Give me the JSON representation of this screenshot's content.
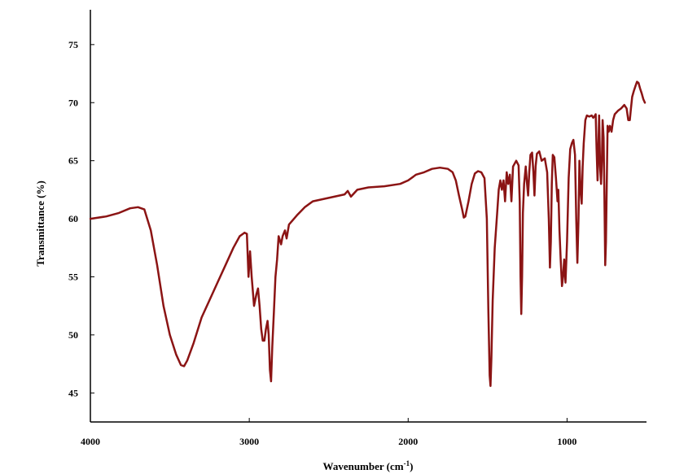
{
  "chart_data": {
    "type": "line",
    "title": "",
    "xlabel": "Wavenumber (cm",
    "xlabel_sup": "-1",
    "xlabel_end": ")",
    "ylabel": "Transmittance (%)",
    "xlim": [
      4000,
      500
    ],
    "ylim": [
      42.5,
      78
    ],
    "x_reversed": true,
    "grid": false,
    "legend": "none",
    "x_ticks": [
      4000,
      3000,
      2000,
      1000
    ],
    "y_ticks": [
      45,
      50,
      55,
      60,
      65,
      70,
      75
    ],
    "series": [
      {
        "color": "#8b1414",
        "points": [
          [
            4000,
            60.0
          ],
          [
            3900,
            60.2
          ],
          [
            3820,
            60.5
          ],
          [
            3750,
            60.9
          ],
          [
            3700,
            61.0
          ],
          [
            3660,
            60.8
          ],
          [
            3620,
            59.0
          ],
          [
            3580,
            56.0
          ],
          [
            3540,
            52.5
          ],
          [
            3500,
            50.0
          ],
          [
            3460,
            48.3
          ],
          [
            3430,
            47.4
          ],
          [
            3410,
            47.3
          ],
          [
            3390,
            47.8
          ],
          [
            3350,
            49.3
          ],
          [
            3300,
            51.5
          ],
          [
            3250,
            53.0
          ],
          [
            3200,
            54.5
          ],
          [
            3150,
            56.0
          ],
          [
            3100,
            57.5
          ],
          [
            3060,
            58.5
          ],
          [
            3030,
            58.8
          ],
          [
            3015,
            58.7
          ],
          [
            3005,
            55.0
          ],
          [
            2995,
            57.2
          ],
          [
            2985,
            55.0
          ],
          [
            2970,
            52.5
          ],
          [
            2955,
            53.5
          ],
          [
            2945,
            54.0
          ],
          [
            2935,
            52.5
          ],
          [
            2925,
            50.5
          ],
          [
            2915,
            49.5
          ],
          [
            2905,
            49.5
          ],
          [
            2895,
            50.5
          ],
          [
            2885,
            51.2
          ],
          [
            2878,
            50.0
          ],
          [
            2870,
            47.0
          ],
          [
            2863,
            46.0
          ],
          [
            2855,
            49.0
          ],
          [
            2845,
            52.0
          ],
          [
            2835,
            55.0
          ],
          [
            2825,
            56.5
          ],
          [
            2815,
            58.5
          ],
          [
            2800,
            57.8
          ],
          [
            2790,
            58.5
          ],
          [
            2775,
            59.0
          ],
          [
            2765,
            58.3
          ],
          [
            2750,
            59.5
          ],
          [
            2700,
            60.3
          ],
          [
            2650,
            61.0
          ],
          [
            2600,
            61.5
          ],
          [
            2500,
            61.8
          ],
          [
            2400,
            62.1
          ],
          [
            2380,
            62.4
          ],
          [
            2360,
            61.9
          ],
          [
            2320,
            62.5
          ],
          [
            2250,
            62.7
          ],
          [
            2150,
            62.8
          ],
          [
            2050,
            63.0
          ],
          [
            2000,
            63.3
          ],
          [
            1950,
            63.8
          ],
          [
            1900,
            64.0
          ],
          [
            1850,
            64.3
          ],
          [
            1800,
            64.4
          ],
          [
            1750,
            64.3
          ],
          [
            1720,
            64.0
          ],
          [
            1700,
            63.3
          ],
          [
            1680,
            62.0
          ],
          [
            1660,
            60.8
          ],
          [
            1650,
            60.1
          ],
          [
            1640,
            60.2
          ],
          [
            1620,
            61.5
          ],
          [
            1600,
            63.0
          ],
          [
            1580,
            63.9
          ],
          [
            1560,
            64.1
          ],
          [
            1540,
            64.0
          ],
          [
            1520,
            63.5
          ],
          [
            1505,
            60.0
          ],
          [
            1495,
            52.0
          ],
          [
            1487,
            46.5
          ],
          [
            1482,
            45.6
          ],
          [
            1476,
            48.0
          ],
          [
            1468,
            53.0
          ],
          [
            1455,
            57.5
          ],
          [
            1440,
            60.5
          ],
          [
            1430,
            62.5
          ],
          [
            1420,
            63.3
          ],
          [
            1410,
            62.5
          ],
          [
            1400,
            63.3
          ],
          [
            1390,
            61.5
          ],
          [
            1380,
            64.0
          ],
          [
            1370,
            63.0
          ],
          [
            1360,
            63.8
          ],
          [
            1350,
            61.5
          ],
          [
            1340,
            64.5
          ],
          [
            1320,
            65.0
          ],
          [
            1305,
            64.6
          ],
          [
            1298,
            61.5
          ],
          [
            1293,
            55.0
          ],
          [
            1288,
            51.8
          ],
          [
            1283,
            55.0
          ],
          [
            1278,
            60.5
          ],
          [
            1270,
            63.0
          ],
          [
            1260,
            64.5
          ],
          [
            1252,
            63.0
          ],
          [
            1245,
            62.0
          ],
          [
            1238,
            64.0
          ],
          [
            1230,
            65.5
          ],
          [
            1220,
            65.7
          ],
          [
            1212,
            64.0
          ],
          [
            1205,
            62.0
          ],
          [
            1198,
            64.5
          ],
          [
            1190,
            65.6
          ],
          [
            1175,
            65.8
          ],
          [
            1160,
            65.0
          ],
          [
            1140,
            65.2
          ],
          [
            1125,
            64.0
          ],
          [
            1115,
            60.0
          ],
          [
            1108,
            55.8
          ],
          [
            1102,
            58.0
          ],
          [
            1096,
            63.0
          ],
          [
            1090,
            65.5
          ],
          [
            1080,
            65.3
          ],
          [
            1070,
            63.5
          ],
          [
            1060,
            61.5
          ],
          [
            1055,
            62.5
          ],
          [
            1048,
            59.0
          ],
          [
            1040,
            56.5
          ],
          [
            1032,
            54.2
          ],
          [
            1025,
            55.0
          ],
          [
            1018,
            56.5
          ],
          [
            1010,
            54.5
          ],
          [
            1000,
            58.0
          ],
          [
            990,
            63.5
          ],
          [
            980,
            66.0
          ],
          [
            970,
            66.5
          ],
          [
            960,
            66.8
          ],
          [
            950,
            65.5
          ],
          [
            942,
            60.0
          ],
          [
            935,
            56.2
          ],
          [
            928,
            60.0
          ],
          [
            922,
            65.0
          ],
          [
            915,
            62.5
          ],
          [
            908,
            61.3
          ],
          [
            902,
            64.5
          ],
          [
            895,
            66.5
          ],
          [
            885,
            68.5
          ],
          [
            875,
            68.9
          ],
          [
            860,
            68.8
          ],
          [
            845,
            68.9
          ],
          [
            835,
            68.7
          ],
          [
            828,
            68.8
          ],
          [
            820,
            69.0
          ],
          [
            814,
            66.0
          ],
          [
            808,
            63.3
          ],
          [
            803,
            66.0
          ],
          [
            798,
            68.9
          ],
          [
            792,
            64.5
          ],
          [
            786,
            63.0
          ],
          [
            781,
            65.0
          ],
          [
            776,
            68.5
          ],
          [
            770,
            67.0
          ],
          [
            765,
            62.0
          ],
          [
            760,
            56.0
          ],
          [
            755,
            58.0
          ],
          [
            750,
            63.0
          ],
          [
            745,
            68.0
          ],
          [
            738,
            67.5
          ],
          [
            730,
            68.0
          ],
          [
            720,
            67.5
          ],
          [
            710,
            68.5
          ],
          [
            700,
            69.0
          ],
          [
            680,
            69.3
          ],
          [
            660,
            69.5
          ],
          [
            640,
            69.8
          ],
          [
            625,
            69.5
          ],
          [
            615,
            68.5
          ],
          [
            605,
            68.5
          ],
          [
            598,
            69.5
          ],
          [
            590,
            70.5
          ],
          [
            580,
            71.0
          ],
          [
            570,
            71.4
          ],
          [
            560,
            71.8
          ],
          [
            550,
            71.7
          ],
          [
            540,
            71.2
          ],
          [
            530,
            70.8
          ],
          [
            520,
            70.3
          ],
          [
            510,
            70.0
          ]
        ]
      }
    ]
  }
}
